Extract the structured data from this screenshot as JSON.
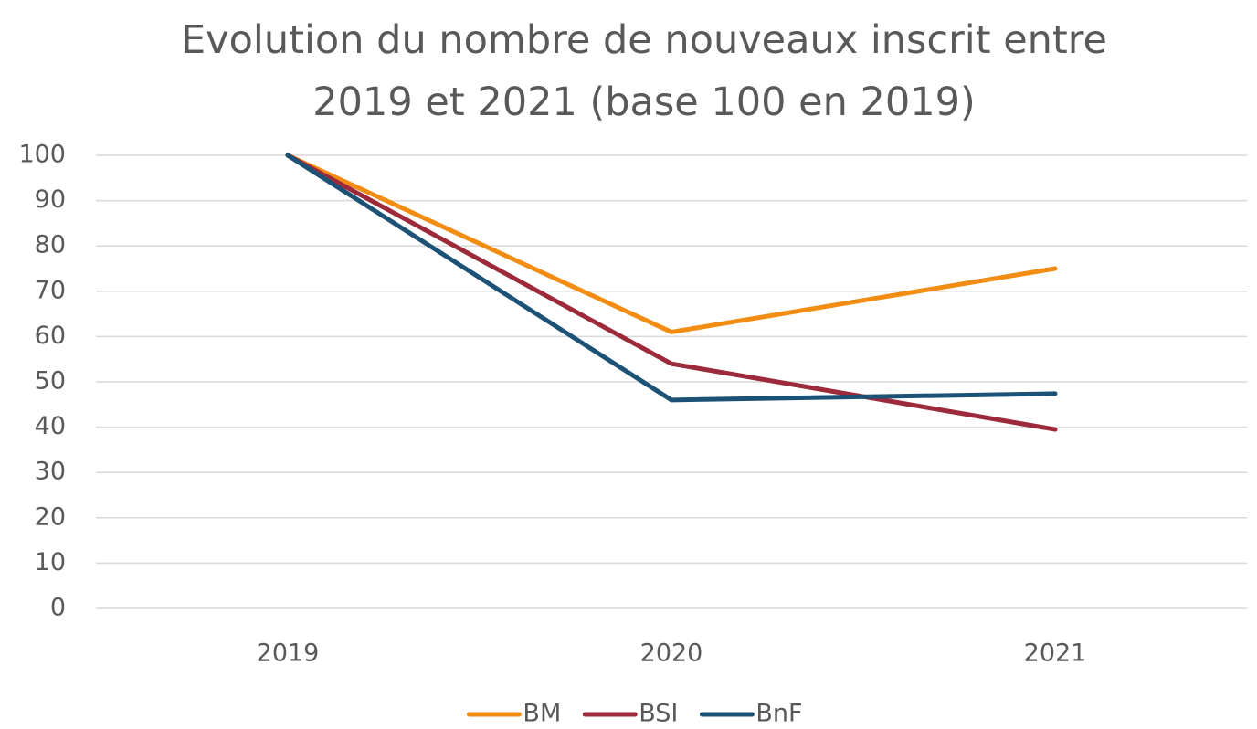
{
  "chart_data": {
    "type": "line",
    "title": "Evolution du nombre de nouveaux inscrit entre\n2019 et 2021 (base 100 en 2019)",
    "categories": [
      "2019",
      "2020",
      "2021"
    ],
    "series": [
      {
        "name": "BM",
        "color": "#f28c12",
        "values": [
          100,
          61,
          75
        ]
      },
      {
        "name": "BSI",
        "color": "#9c2a3a",
        "values": [
          100,
          54,
          39.5
        ]
      },
      {
        "name": "BnF",
        "color": "#1c5276",
        "values": [
          100,
          46,
          47.4
        ]
      }
    ],
    "ylim": [
      0,
      100
    ],
    "yticks": [
      0,
      10,
      20,
      30,
      40,
      50,
      60,
      70,
      80,
      90,
      100
    ],
    "grid": true,
    "legend": "bottom"
  }
}
